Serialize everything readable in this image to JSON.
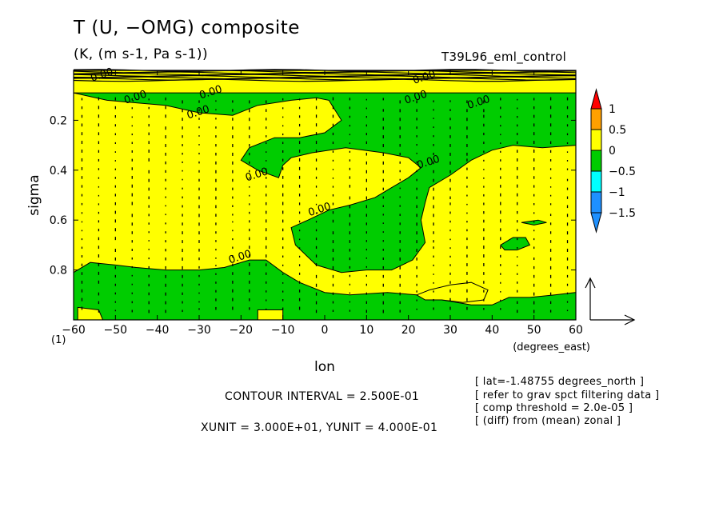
{
  "header": {
    "title": "T (U, −OMG) composite",
    "subtitle": "(K, (m s-1, Pa s-1))",
    "run_tag": "T39L96_eml_control"
  },
  "footer": {
    "contour_interval": "CONTOUR INTERVAL = 2.500E-01",
    "vector_units": "XUNIT = 3.000E+01, YUNIT = 4.000E-01",
    "info_lines": [
      "[ lat=-1.48755 degrees_north ]",
      "[ refer to grav spct filtering data ]",
      "[ comp threshold = 2.0e-05 ]",
      "[ (diff) from (mean) zonal ]"
    ]
  },
  "colors": {
    "positive_fill": "#ffff00",
    "negative_fill": "#00cc00",
    "contour_line": "#000000"
  },
  "chart_data": {
    "type": "heatmap",
    "subtype": "filled contour with vector overlay",
    "xlabel": "lon",
    "x_unit_label": "(degrees_east)",
    "ylabel": "sigma",
    "y_extra_label": "(1)",
    "xlim": [
      -60,
      60
    ],
    "ylim": [
      1.0,
      0.0
    ],
    "y_inverted": true,
    "x_ticks": [
      -60,
      -50,
      -40,
      -30,
      -20,
      -10,
      0,
      10,
      20,
      30,
      40,
      50,
      60
    ],
    "x_tick_labels": [
      "−60",
      "−50",
      "−40",
      "−30",
      "−20",
      "−10",
      "0",
      "10",
      "20",
      "30",
      "40",
      "50",
      "60"
    ],
    "y_ticks": [
      0.2,
      0.4,
      0.6,
      0.8
    ],
    "y_tick_labels": [
      "0.2",
      "0.4",
      "0.6",
      "0.8"
    ],
    "contour_labels": [
      {
        "text": "0.00",
        "lon": -30,
        "sigma": 0.18
      },
      {
        "text": "0.00",
        "lon": -16,
        "sigma": 0.43
      },
      {
        "text": "0.00",
        "lon": 25,
        "sigma": 0.38
      },
      {
        "text": "0.00",
        "lon": -1,
        "sigma": 0.57
      },
      {
        "text": "0.00",
        "lon": -20,
        "sigma": 0.76
      },
      {
        "text": "0.00",
        "lon": -45,
        "sigma": 0.12
      },
      {
        "text": "0.00",
        "lon": 22,
        "sigma": 0.12
      },
      {
        "text": "0.00",
        "lon": 37,
        "sigma": 0.14
      },
      {
        "text": "0.00",
        "lon": -27,
        "sigma": 0.1
      },
      {
        "text": "0.00",
        "lon": -53,
        "sigma": 0.03
      },
      {
        "text": "0.00",
        "lon": 24,
        "sigma": 0.04
      }
    ],
    "negative_regions": [
      {
        "name": "upper",
        "points": [
          [
            -60,
            0.09
          ],
          [
            -52,
            0.12
          ],
          [
            -45,
            0.13
          ],
          [
            -38,
            0.14
          ],
          [
            -30,
            0.17
          ],
          [
            -22,
            0.18
          ],
          [
            -16,
            0.14
          ],
          [
            -8,
            0.12
          ],
          [
            -2,
            0.11
          ],
          [
            1,
            0.12
          ],
          [
            4,
            0.2
          ],
          [
            0,
            0.25
          ],
          [
            -6,
            0.27
          ],
          [
            -12,
            0.27
          ],
          [
            -18,
            0.31
          ],
          [
            -20,
            0.36
          ],
          [
            -16,
            0.4
          ],
          [
            -11,
            0.43
          ],
          [
            -10,
            0.38
          ],
          [
            -8,
            0.35
          ],
          [
            -3,
            0.33
          ],
          [
            5,
            0.31
          ],
          [
            14,
            0.33
          ],
          [
            20,
            0.35
          ],
          [
            23,
            0.39
          ],
          [
            20,
            0.43
          ],
          [
            16,
            0.47
          ],
          [
            12,
            0.51
          ],
          [
            6,
            0.54
          ],
          [
            1,
            0.56
          ],
          [
            -4,
            0.6
          ],
          [
            -8,
            0.63
          ],
          [
            -7,
            0.7
          ],
          [
            -2,
            0.78
          ],
          [
            4,
            0.81
          ],
          [
            10,
            0.8
          ],
          [
            16,
            0.8
          ],
          [
            21,
            0.76
          ],
          [
            24,
            0.69
          ],
          [
            23,
            0.6
          ],
          [
            24,
            0.53
          ],
          [
            25,
            0.47
          ],
          [
            30,
            0.42
          ],
          [
            35,
            0.36
          ],
          [
            40,
            0.32
          ],
          [
            45,
            0.3
          ],
          [
            52,
            0.31
          ],
          [
            60,
            0.3
          ],
          [
            60,
            0.09
          ]
        ]
      },
      {
        "name": "lower",
        "points": [
          [
            -60,
            0.81
          ],
          [
            -56,
            0.77
          ],
          [
            -50,
            0.78
          ],
          [
            -45,
            0.79
          ],
          [
            -38,
            0.8
          ],
          [
            -30,
            0.8
          ],
          [
            -24,
            0.79
          ],
          [
            -18,
            0.76
          ],
          [
            -14,
            0.76
          ],
          [
            -10,
            0.81
          ],
          [
            -6,
            0.85
          ],
          [
            0,
            0.89
          ],
          [
            6,
            0.9
          ],
          [
            15,
            0.89
          ],
          [
            22,
            0.9
          ],
          [
            28,
            0.92
          ],
          [
            35,
            0.94
          ],
          [
            40,
            0.94
          ],
          [
            44,
            0.91
          ],
          [
            49,
            0.91
          ],
          [
            55,
            0.9
          ],
          [
            60,
            0.89
          ],
          [
            60,
            1.0
          ],
          [
            -60,
            1.0
          ]
        ]
      }
    ],
    "positive_islands": [
      {
        "name": "lower-right",
        "points": [
          [
            22,
            0.9
          ],
          [
            25,
            0.88
          ],
          [
            30,
            0.86
          ],
          [
            35,
            0.85
          ],
          [
            39,
            0.88
          ],
          [
            38,
            0.92
          ],
          [
            33,
            0.93
          ],
          [
            28,
            0.92
          ],
          [
            24,
            0.92
          ]
        ]
      },
      {
        "name": "bottom-left",
        "points": [
          [
            -59,
            0.95
          ],
          [
            -54,
            0.96
          ],
          [
            -53,
            1.0
          ],
          [
            -59,
            1.0
          ]
        ]
      },
      {
        "name": "bottom-mid",
        "points": [
          [
            -16,
            0.96
          ],
          [
            -10,
            0.96
          ],
          [
            -10,
            1.0
          ],
          [
            -16,
            1.0
          ]
        ]
      }
    ],
    "negative_islands": [
      {
        "name": "right-small",
        "points": [
          [
            42,
            0.7
          ],
          [
            45,
            0.67
          ],
          [
            48,
            0.67
          ],
          [
            49,
            0.7
          ],
          [
            46,
            0.72
          ],
          [
            43,
            0.72
          ]
        ]
      },
      {
        "name": "right-sliver",
        "points": [
          [
            47,
            0.61
          ],
          [
            51,
            0.6
          ],
          [
            53,
            0.61
          ],
          [
            50,
            0.62
          ]
        ]
      }
    ],
    "colorbar": {
      "labels": [
        "1",
        "0.5",
        "0",
        "−0.5",
        "−1",
        "−1.5"
      ],
      "colors": [
        "#ff0000",
        "#ffa000",
        "#ffff00",
        "#00cc00",
        "#00ffff",
        "#1e90ff"
      ]
    },
    "reference_vector": {
      "x_unit": 30,
      "y_unit": 0.4
    },
    "vector_columns_lon": [
      -58,
      -54,
      -50,
      -46,
      -42,
      -38,
      -34,
      -30,
      -26,
      -22,
      -18,
      -14,
      -10,
      -6,
      -2,
      2,
      6,
      10,
      14,
      18,
      22,
      26,
      30,
      34,
      38,
      42,
      46,
      50,
      54,
      58
    ]
  }
}
